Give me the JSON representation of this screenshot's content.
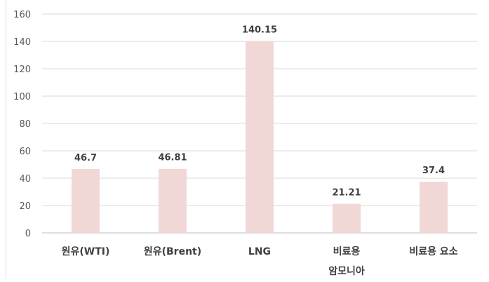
{
  "chart_data": {
    "type": "bar",
    "categories": [
      "원유(WTI)",
      "원유(Brent)",
      "LNG",
      "비료용\n암모니아",
      "비료용 요소"
    ],
    "values": [
      46.7,
      46.81,
      140.15,
      21.21,
      37.4
    ],
    "data_labels": [
      "46.7",
      "46.81",
      "140.15",
      "21.21",
      "37.4"
    ],
    "title": "",
    "xlabel": "",
    "ylabel": "",
    "ylim": [
      0,
      160
    ],
    "yticks": [
      0,
      20,
      40,
      60,
      80,
      100,
      120,
      140,
      160
    ],
    "grid": true,
    "legend": "none",
    "colors": {
      "bar": "#f2d7d7",
      "grid": "#d9d9d9",
      "axis": "#bfbfbf",
      "tick_text": "#595959",
      "label_text": "#404040"
    }
  }
}
